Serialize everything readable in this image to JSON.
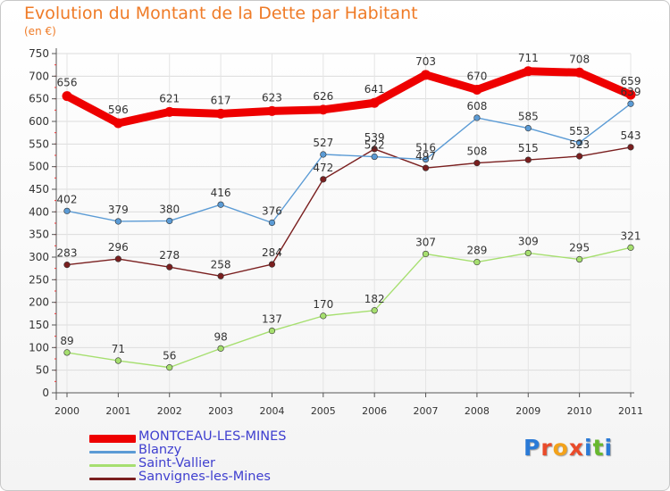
{
  "title": "Evolution du Montant de la Dette par Habitant",
  "subtitle": "(en €)",
  "logo": {
    "text": "Proxiti",
    "letters": [
      "P",
      "r",
      "o",
      "x",
      "i",
      "t",
      "i"
    ],
    "colors": [
      "#2b7ad6",
      "#e94b2b",
      "#f3a21b",
      "#e94b2b",
      "#2b7ad6",
      "#67b82e",
      "#2b7ad6"
    ]
  },
  "chart_data": {
    "type": "line",
    "x": [
      "2000",
      "2001",
      "2002",
      "2003",
      "2004",
      "2005",
      "2006",
      "2007",
      "2008",
      "2009",
      "2010",
      "2011"
    ],
    "ylim": [
      0,
      750
    ],
    "yticks": [
      0,
      50,
      100,
      150,
      200,
      250,
      300,
      350,
      400,
      450,
      500,
      550,
      600,
      650,
      700,
      750
    ],
    "grid": true,
    "legend_position": "bottom-left",
    "series": [
      {
        "name": "MONTCEAU-LES-MINES",
        "color": "#ee0000",
        "values": [
          656,
          596,
          621,
          617,
          623,
          626,
          641,
          703,
          670,
          711,
          708,
          659
        ]
      },
      {
        "name": "Blanzy",
        "color": "#5b9bd5",
        "values": [
          402,
          379,
          380,
          416,
          376,
          527,
          522,
          516,
          608,
          585,
          553,
          639
        ]
      },
      {
        "name": "Saint-Vallier",
        "color": "#a6df6f",
        "values": [
          89,
          71,
          56,
          98,
          137,
          170,
          182,
          307,
          289,
          309,
          295,
          321
        ]
      },
      {
        "name": "Sanvignes-les-Mines",
        "color": "#7a1f1f",
        "values": [
          283,
          296,
          278,
          258,
          284,
          472,
          539,
          497,
          508,
          515,
          523,
          543
        ]
      }
    ]
  }
}
